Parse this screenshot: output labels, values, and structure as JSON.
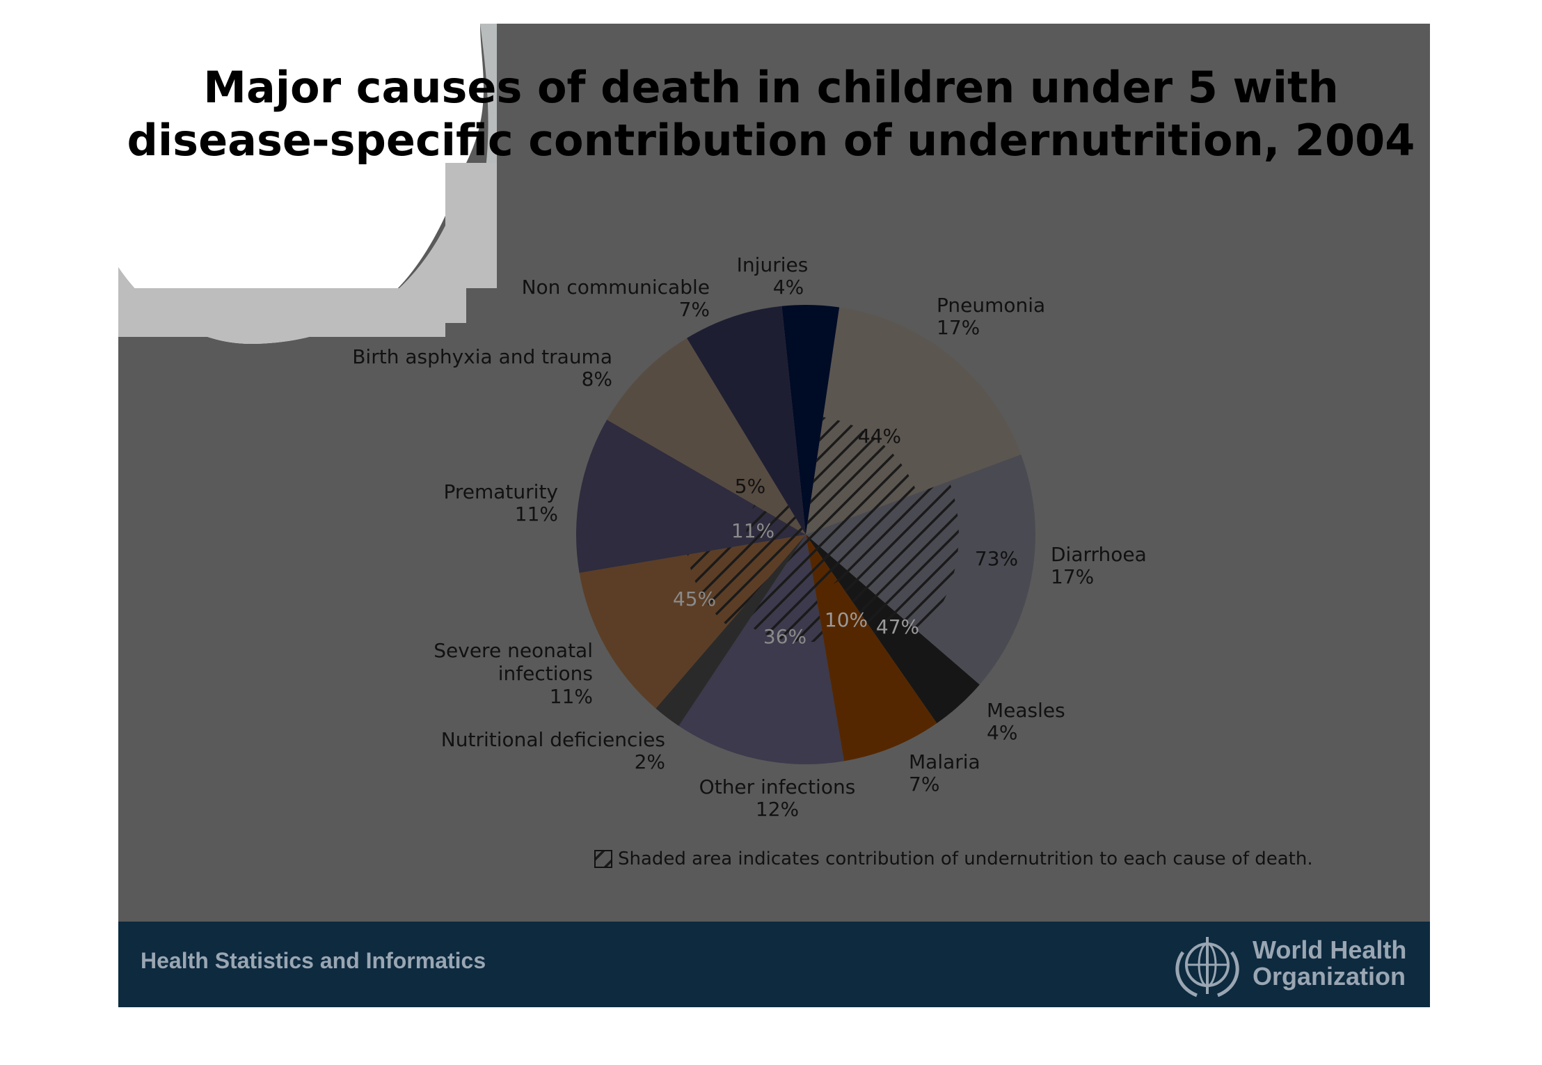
{
  "title_line1": "Major causes of death in children under 5 with",
  "title_line2": "disease-specific contribution of undernutrition, 2004",
  "footer": {
    "left_text": "Health Statistics and Informatics",
    "org_line1": "World Health",
    "org_line2": "Organization",
    "logo_icon": "who-emblem-icon"
  },
  "colors": {
    "slide_bg": "#5a5a5a",
    "footer_bg": "#0d2a3f"
  },
  "chart_data": {
    "type": "pie",
    "title": "Major causes of death in children under 5 with disease-specific contribution of undernutrition, 2004",
    "legend_text": "Shaded area indicates contribution of undernutrition to each cause of death.",
    "legend_placement": "bottom",
    "slices": [
      {
        "name": "Injuries",
        "label_value": "4%",
        "value": 4,
        "undernutrition": null,
        "color": "#000b26"
      },
      {
        "name": "Pneumonia",
        "label_value": "17%",
        "value": 17,
        "undernutrition": "44%",
        "color": "#5c5650"
      },
      {
        "name": "Diarrhoea",
        "label_value": "17%",
        "value": 17,
        "undernutrition": "73%",
        "color": "#4a4a52"
      },
      {
        "name": "Measles",
        "label_value": "4%",
        "value": 4,
        "undernutrition": "47%",
        "color": "#161616"
      },
      {
        "name": "Malaria",
        "label_value": "7%",
        "value": 7,
        "undernutrition": "10%",
        "color": "#552700"
      },
      {
        "name": "Other infections",
        "label_value": "12%",
        "value": 12,
        "undernutrition": "36%",
        "color": "#3c3a4c"
      },
      {
        "name": "Nutritional deficiencies",
        "label_value": "2%",
        "value": 2,
        "undernutrition": null,
        "color": "#2a2a2a"
      },
      {
        "name": "Severe neonatal infections",
        "label_value": "11%",
        "value": 11,
        "undernutrition": "45%",
        "color": "#5c3e26"
      },
      {
        "name": "Prematurity",
        "label_value": "11%",
        "value": 11,
        "undernutrition": "11%",
        "color": "#2e2c3e"
      },
      {
        "name": "Birth asphyxia and trauma",
        "label_value": "8%",
        "value": 8,
        "undernutrition": "5%",
        "color": "#574c42"
      },
      {
        "name": "Non communicable",
        "label_value": "7%",
        "value": 7,
        "undernutrition": null,
        "color": "#1e1e32"
      }
    ]
  }
}
